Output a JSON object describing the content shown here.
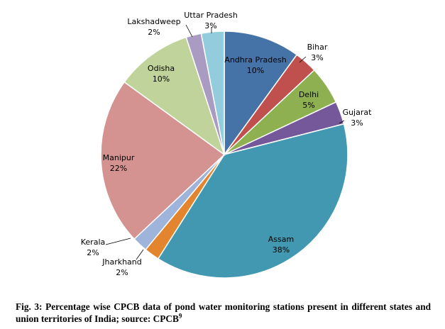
{
  "chart_data": {
    "type": "pie",
    "title": "",
    "slices": [
      {
        "label": "Andhra Pradesh",
        "value": 10,
        "value_label": "10%",
        "color": "#4572A7"
      },
      {
        "label": "Bihar",
        "value": 3,
        "value_label": "3%",
        "color": "#C0504D"
      },
      {
        "label": "Delhi",
        "value": 5,
        "value_label": "5%",
        "color": "#8EB050"
      },
      {
        "label": "Gujarat",
        "value": 3,
        "value_label": "3%",
        "color": "#74589A"
      },
      {
        "label": "Assam",
        "value": 38,
        "value_label": "38%",
        "color": "#4298B1"
      },
      {
        "label": "Jharkhand",
        "value": 2,
        "value_label": "2%",
        "color": "#E2852E"
      },
      {
        "label": "Kerala",
        "value": 2,
        "value_label": "2%",
        "color": "#9EB4DA"
      },
      {
        "label": "Manipur",
        "value": 22,
        "value_label": "22%",
        "color": "#D49391"
      },
      {
        "label": "Odisha",
        "value": 10,
        "value_label": "10%",
        "color": "#BFD39A"
      },
      {
        "label": "Lakshadweep",
        "value": 2,
        "value_label": "2%",
        "color": "#A99BC1"
      },
      {
        "label": "Uttar Pradesh",
        "value": 3,
        "value_label": "3%",
        "color": "#93CDDD"
      }
    ],
    "legend": "none"
  },
  "caption": {
    "text": "Fig. 3: Percentage wise CPCB data of pond water monitoring stations present in different states and union territories of India; source: CPCB",
    "superscript": "9"
  }
}
